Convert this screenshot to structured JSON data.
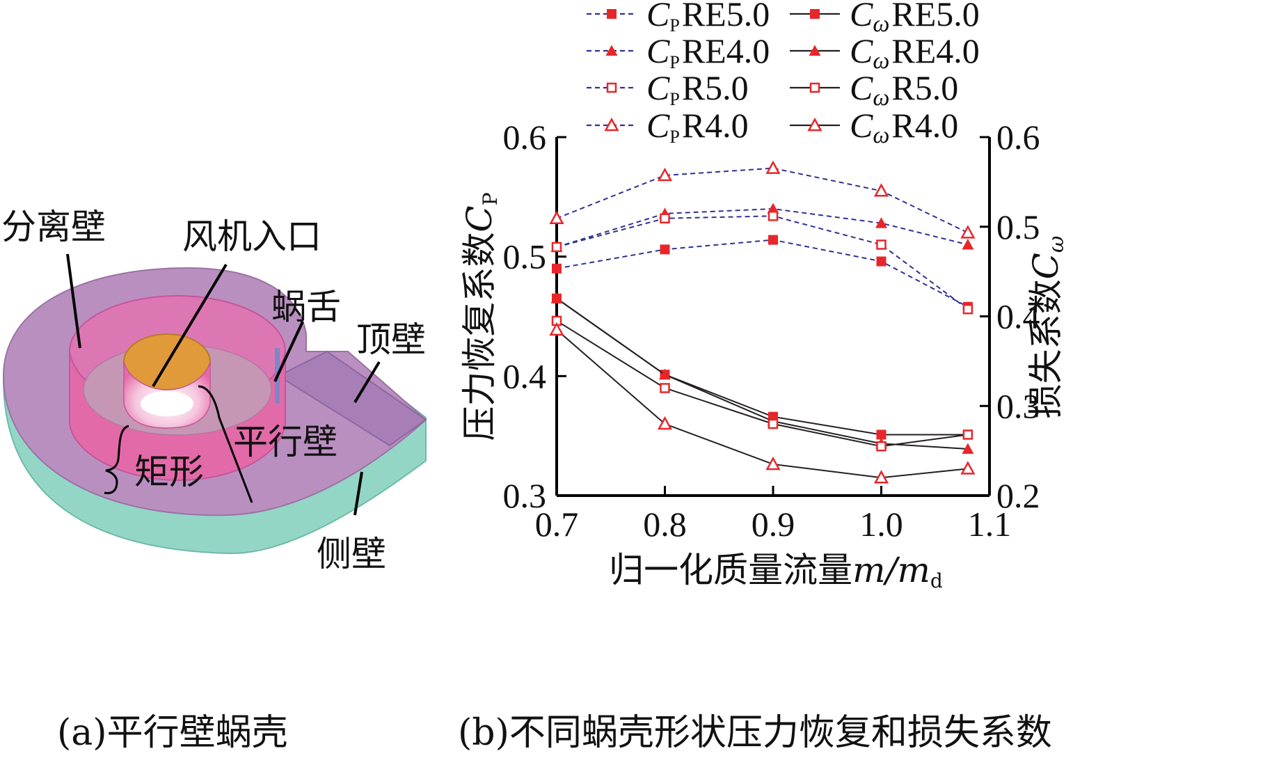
{
  "figure_a": {
    "caption": "(a)平行壁蜗壳",
    "labels": {
      "separation_wall": "分离壁",
      "fan_inlet": "风机入口",
      "volute_tongue": "蜗舌",
      "top_wall": "顶壁",
      "parallel_wall": "平行壁",
      "rectangle": "矩形",
      "side_wall": "侧壁"
    }
  },
  "figure_b": {
    "caption": "(b)不同蜗壳形状压力恢复和损失系数"
  },
  "chart_data": {
    "type": "line",
    "xlabel_text": "归一化质量流量",
    "xlabel_var": "m",
    "xlabel_sep": "/",
    "xlabel_var2": "m",
    "xlabel_sub": "d",
    "ylabel_text": "压力恢复系数",
    "ylabel_var": "C",
    "ylabel_sub": "P",
    "y2label_text": "损失系数",
    "y2label_var": "C",
    "y2label_sub": "ω",
    "xlim": [
      0.7,
      1.1
    ],
    "ylim": [
      0.3,
      0.6
    ],
    "y2lim": [
      0.2,
      0.6
    ],
    "xticks": [
      0.7,
      0.8,
      0.9,
      1.0,
      1.1
    ],
    "xtick_labels": [
      "0.7",
      "0.8",
      "0.9",
      "1.0",
      "1.1"
    ],
    "yticks": [
      0.3,
      0.4,
      0.5,
      0.6
    ],
    "ytick_labels": [
      "0.3",
      "0.4",
      "0.5",
      "0.6"
    ],
    "y2ticks": [
      0.2,
      0.3,
      0.4,
      0.5,
      0.6
    ],
    "y2tick_labels": [
      "0.2",
      "0.3",
      "0.4",
      "0.5",
      "0.6"
    ],
    "legend_placement": "top",
    "colors": {
      "cp_line": "#2e3192",
      "cw_line": "#231f20",
      "marker": "#e8262a"
    },
    "x": [
      0.7,
      0.8,
      0.9,
      1.0,
      1.08
    ],
    "series": [
      {
        "name_var": "C",
        "name_sub": "P",
        "name_tag": "RE5.0",
        "axis": "left",
        "marker": "square-filled",
        "line": "dashed",
        "values": [
          0.49,
          0.506,
          0.514,
          0.496,
          0.458
        ]
      },
      {
        "name_var": "C",
        "name_sub": "P",
        "name_tag": "RE4.0",
        "axis": "left",
        "marker": "triangle-filled",
        "line": "dashed",
        "values": [
          0.508,
          0.536,
          0.54,
          0.528,
          0.51
        ]
      },
      {
        "name_var": "C",
        "name_sub": "P",
        "name_tag": "R5.0",
        "axis": "left",
        "marker": "square-open",
        "line": "dashed",
        "values": [
          0.508,
          0.532,
          0.534,
          0.51,
          0.456
        ]
      },
      {
        "name_var": "C",
        "name_sub": "P",
        "name_tag": "R4.0",
        "axis": "left",
        "marker": "triangle-open",
        "line": "dashed",
        "values": [
          0.532,
          0.568,
          0.574,
          0.555,
          0.52
        ]
      },
      {
        "name_var": "C",
        "name_sub": "ω",
        "name_tag": "RE5.0",
        "axis": "right",
        "marker": "square-filled",
        "line": "solid",
        "values": [
          0.42,
          0.335,
          0.288,
          0.268,
          0.268
        ]
      },
      {
        "name_var": "C",
        "name_sub": "ω",
        "name_tag": "RE4.0",
        "axis": "right",
        "marker": "triangle-filled",
        "line": "solid",
        "values": [
          0.42,
          0.335,
          0.283,
          0.258,
          0.252
        ]
      },
      {
        "name_var": "C",
        "name_sub": "ω",
        "name_tag": "R5.0",
        "axis": "right",
        "marker": "square-open",
        "line": "solid",
        "values": [
          0.395,
          0.32,
          0.28,
          0.255,
          0.268
        ]
      },
      {
        "name_var": "C",
        "name_sub": "ω",
        "name_tag": "R4.0",
        "axis": "right",
        "marker": "triangle-open",
        "line": "solid",
        "values": [
          0.385,
          0.28,
          0.235,
          0.22,
          0.23
        ]
      }
    ]
  }
}
